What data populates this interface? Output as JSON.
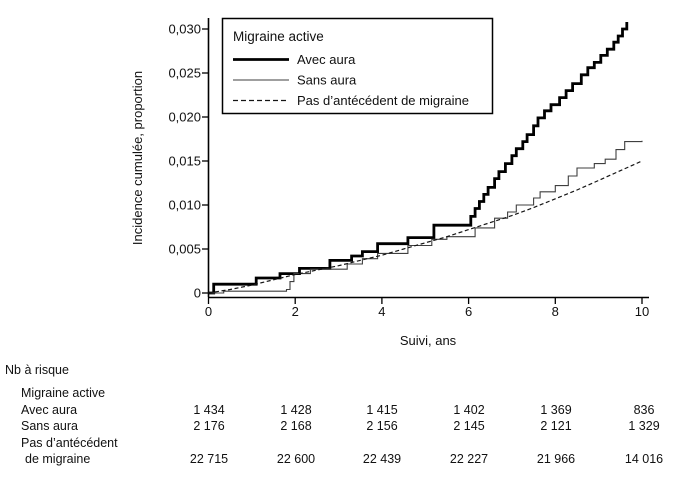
{
  "chart_data": {
    "type": "line",
    "title": "",
    "xlabel": "Suivi, ans",
    "ylabel": "Incidence cumulée, proportion",
    "xlim": [
      0,
      10
    ],
    "ylim": [
      0,
      0.03
    ],
    "grid": false,
    "x_tick_values": [
      0,
      2,
      4,
      6,
      8,
      10
    ],
    "x_tick_labels": [
      "0",
      "2",
      "4",
      "6",
      "8",
      "10"
    ],
    "y_tick_values": [
      0,
      0.005,
      0.01,
      0.015,
      0.02,
      0.025,
      0.03
    ],
    "y_tick_labels": [
      "0",
      "0,005",
      "0,010",
      "0,015",
      "0,020",
      "0,025",
      "0,030"
    ],
    "legend": {
      "title": "Migraine active",
      "position": "top-left",
      "entries": [
        {
          "label": "Avec aura",
          "style": "thick-solid"
        },
        {
          "label": "Sans aura",
          "style": "thin-solid"
        },
        {
          "label": "Pas d’antécédent de migraine",
          "style": "dashed"
        }
      ]
    },
    "series": [
      {
        "key": "avec-aura",
        "name": "Avec aura",
        "style": "thick-solid",
        "line_type": "step",
        "points": [
          [
            0,
            0
          ],
          [
            0.12,
            0.001
          ],
          [
            1.1,
            0.0017
          ],
          [
            1.65,
            0.0022
          ],
          [
            2.1,
            0.0028
          ],
          [
            2.8,
            0.0037
          ],
          [
            3.3,
            0.0042
          ],
          [
            3.55,
            0.0047
          ],
          [
            3.9,
            0.0056
          ],
          [
            4.6,
            0.0063
          ],
          [
            5.2,
            0.0077
          ],
          [
            6.05,
            0.0087
          ],
          [
            6.15,
            0.0096
          ],
          [
            6.25,
            0.0104
          ],
          [
            6.35,
            0.0112
          ],
          [
            6.45,
            0.012
          ],
          [
            6.6,
            0.013
          ],
          [
            6.7,
            0.0138
          ],
          [
            6.85,
            0.0147
          ],
          [
            7.0,
            0.0156
          ],
          [
            7.1,
            0.0164
          ],
          [
            7.25,
            0.0172
          ],
          [
            7.35,
            0.018
          ],
          [
            7.5,
            0.019
          ],
          [
            7.6,
            0.0199
          ],
          [
            7.75,
            0.0207
          ],
          [
            7.9,
            0.0214
          ],
          [
            8.1,
            0.0222
          ],
          [
            8.25,
            0.023
          ],
          [
            8.4,
            0.0238
          ],
          [
            8.6,
            0.0248
          ],
          [
            8.75,
            0.0256
          ],
          [
            8.9,
            0.0262
          ],
          [
            9.05,
            0.027
          ],
          [
            9.2,
            0.0277
          ],
          [
            9.35,
            0.0285
          ],
          [
            9.45,
            0.0292
          ],
          [
            9.55,
            0.03
          ],
          [
            9.65,
            0.0308
          ]
        ]
      },
      {
        "key": "sans-aura",
        "name": "Sans aura",
        "style": "thin-solid",
        "line_type": "step",
        "points": [
          [
            0,
            0
          ],
          [
            0.35,
            0.0002
          ],
          [
            1.8,
            0.0004
          ],
          [
            1.88,
            0.0013
          ],
          [
            1.97,
            0.0022
          ],
          [
            2.35,
            0.0027
          ],
          [
            3.2,
            0.0033
          ],
          [
            3.55,
            0.0039
          ],
          [
            3.9,
            0.0045
          ],
          [
            4.6,
            0.0054
          ],
          [
            5.15,
            0.0061
          ],
          [
            5.5,
            0.0064
          ],
          [
            6.15,
            0.0074
          ],
          [
            6.6,
            0.0085
          ],
          [
            6.9,
            0.0092
          ],
          [
            7.1,
            0.01
          ],
          [
            7.5,
            0.0108
          ],
          [
            7.65,
            0.0115
          ],
          [
            8.0,
            0.0122
          ],
          [
            8.3,
            0.0133
          ],
          [
            8.5,
            0.0142
          ],
          [
            8.9,
            0.0147
          ],
          [
            9.15,
            0.0152
          ],
          [
            9.4,
            0.0163
          ],
          [
            9.6,
            0.0172
          ],
          [
            10,
            0.0173
          ]
        ]
      },
      {
        "key": "pas-antecedent",
        "name": "Pas d’antécédent de migraine",
        "style": "dashed",
        "line_type": "linear",
        "points": [
          [
            0,
            0
          ],
          [
            0.5,
            0.0004
          ],
          [
            1,
            0.0009
          ],
          [
            1.5,
            0.0015
          ],
          [
            2,
            0.0021
          ],
          [
            2.5,
            0.0026
          ],
          [
            3,
            0.0031
          ],
          [
            3.5,
            0.0037
          ],
          [
            4,
            0.0043
          ],
          [
            4.5,
            0.005
          ],
          [
            5,
            0.0057
          ],
          [
            5.5,
            0.0064
          ],
          [
            6,
            0.0072
          ],
          [
            6.5,
            0.008
          ],
          [
            7,
            0.0088
          ],
          [
            7.5,
            0.0097
          ],
          [
            8,
            0.0107
          ],
          [
            8.5,
            0.0117
          ],
          [
            9,
            0.0128
          ],
          [
            9.5,
            0.0139
          ],
          [
            10,
            0.015
          ]
        ]
      }
    ],
    "colors": {
      "foreground": "#000000",
      "background": "#ffffff"
    }
  },
  "risk_table": {
    "heading": "Nb à risque",
    "group_label": "Migraine active",
    "rows": [
      {
        "label": "Avec aura",
        "values": [
          "1 434",
          "1 428",
          "1 415",
          "1 402",
          "1 369",
          "836"
        ]
      },
      {
        "label": "Sans aura",
        "values": [
          "2 176",
          "2 168",
          "2 156",
          "2 145",
          "2 121",
          "1 329"
        ]
      },
      {
        "label": "Pas d’antécédent",
        "label2": "de migraine",
        "values": [
          "22 715",
          "22 600",
          "22 439",
          "22 227",
          "21 966",
          "14 016"
        ]
      }
    ]
  }
}
